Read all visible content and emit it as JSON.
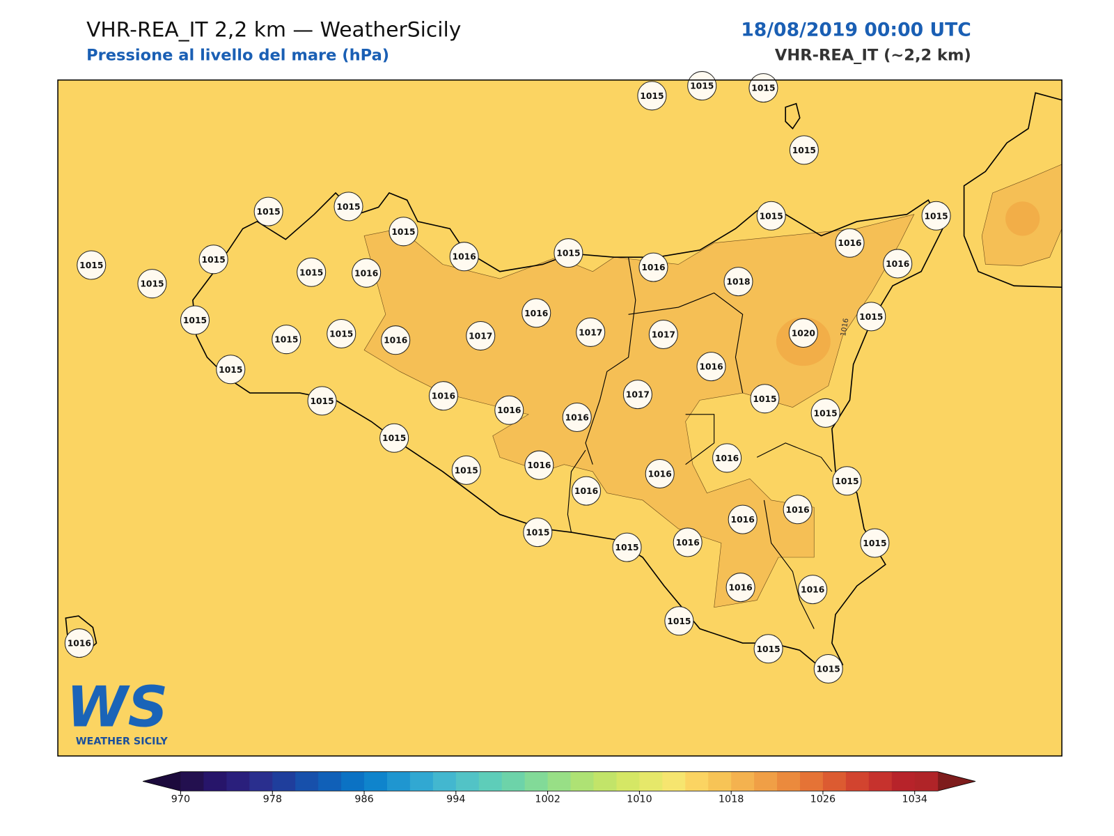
{
  "header": {
    "title": "VHR-REA_IT 2,2 km — WeatherSicily",
    "subtitle": "Pressione al livello del mare (hPa)",
    "date": "18/08/2019 00:00 UTC",
    "model": "VHR-REA_IT (~2,2 km)"
  },
  "map": {
    "land_color": "#fbd462",
    "high_color": "#f5bf55",
    "peak_color": "#f2ae48",
    "contour_label": "1016",
    "stations": [
      1015,
      1015,
      1015,
      1015,
      1015,
      1015,
      1015,
      1016,
      1015,
      1016,
      1015,
      1016,
      1015,
      1016,
      1015,
      1015,
      1015,
      1015,
      1016,
      1018,
      1016,
      1015,
      1015,
      1015,
      1015,
      1016,
      1017,
      1017,
      1017,
      1020,
      1015,
      1016,
      1015,
      1016,
      1017,
      1015,
      1015,
      1016,
      1016,
      1015,
      1016,
      1015,
      1016,
      1016,
      1015,
      1016,
      1016,
      1016,
      1015,
      1015,
      1016,
      1015,
      1016,
      1016,
      1015,
      1015,
      1015,
      1016
    ]
  },
  "colorbar": {
    "lim": [
      970,
      1036
    ],
    "ticks": [
      970,
      978,
      986,
      994,
      1002,
      1010,
      1018,
      1026,
      1034
    ],
    "colors": [
      "#23104f",
      "#27156a",
      "#2a1f7c",
      "#2a2f8e",
      "#1f3e9c",
      "#1750ab",
      "#1060b8",
      "#0b72c4",
      "#0f84cc",
      "#1f96d0",
      "#31a8d2",
      "#43b7cf",
      "#52c3c6",
      "#5ecdb9",
      "#6dd3a9",
      "#82da98",
      "#98df86",
      "#aee274",
      "#c2e469",
      "#d5e765",
      "#e6e86a",
      "#f6e56f",
      "#fbd462",
      "#f7c456",
      "#f4b24f",
      "#f09f46",
      "#eb8a3d",
      "#e57336",
      "#dc5b31",
      "#d2442f",
      "#c6322d",
      "#b7232a",
      "#b02428"
    ],
    "under_color": "#1c0a3c",
    "over_color": "#7e1c1c"
  },
  "logo": {
    "mark": "WS",
    "text": "WEATHER SICILY"
  }
}
